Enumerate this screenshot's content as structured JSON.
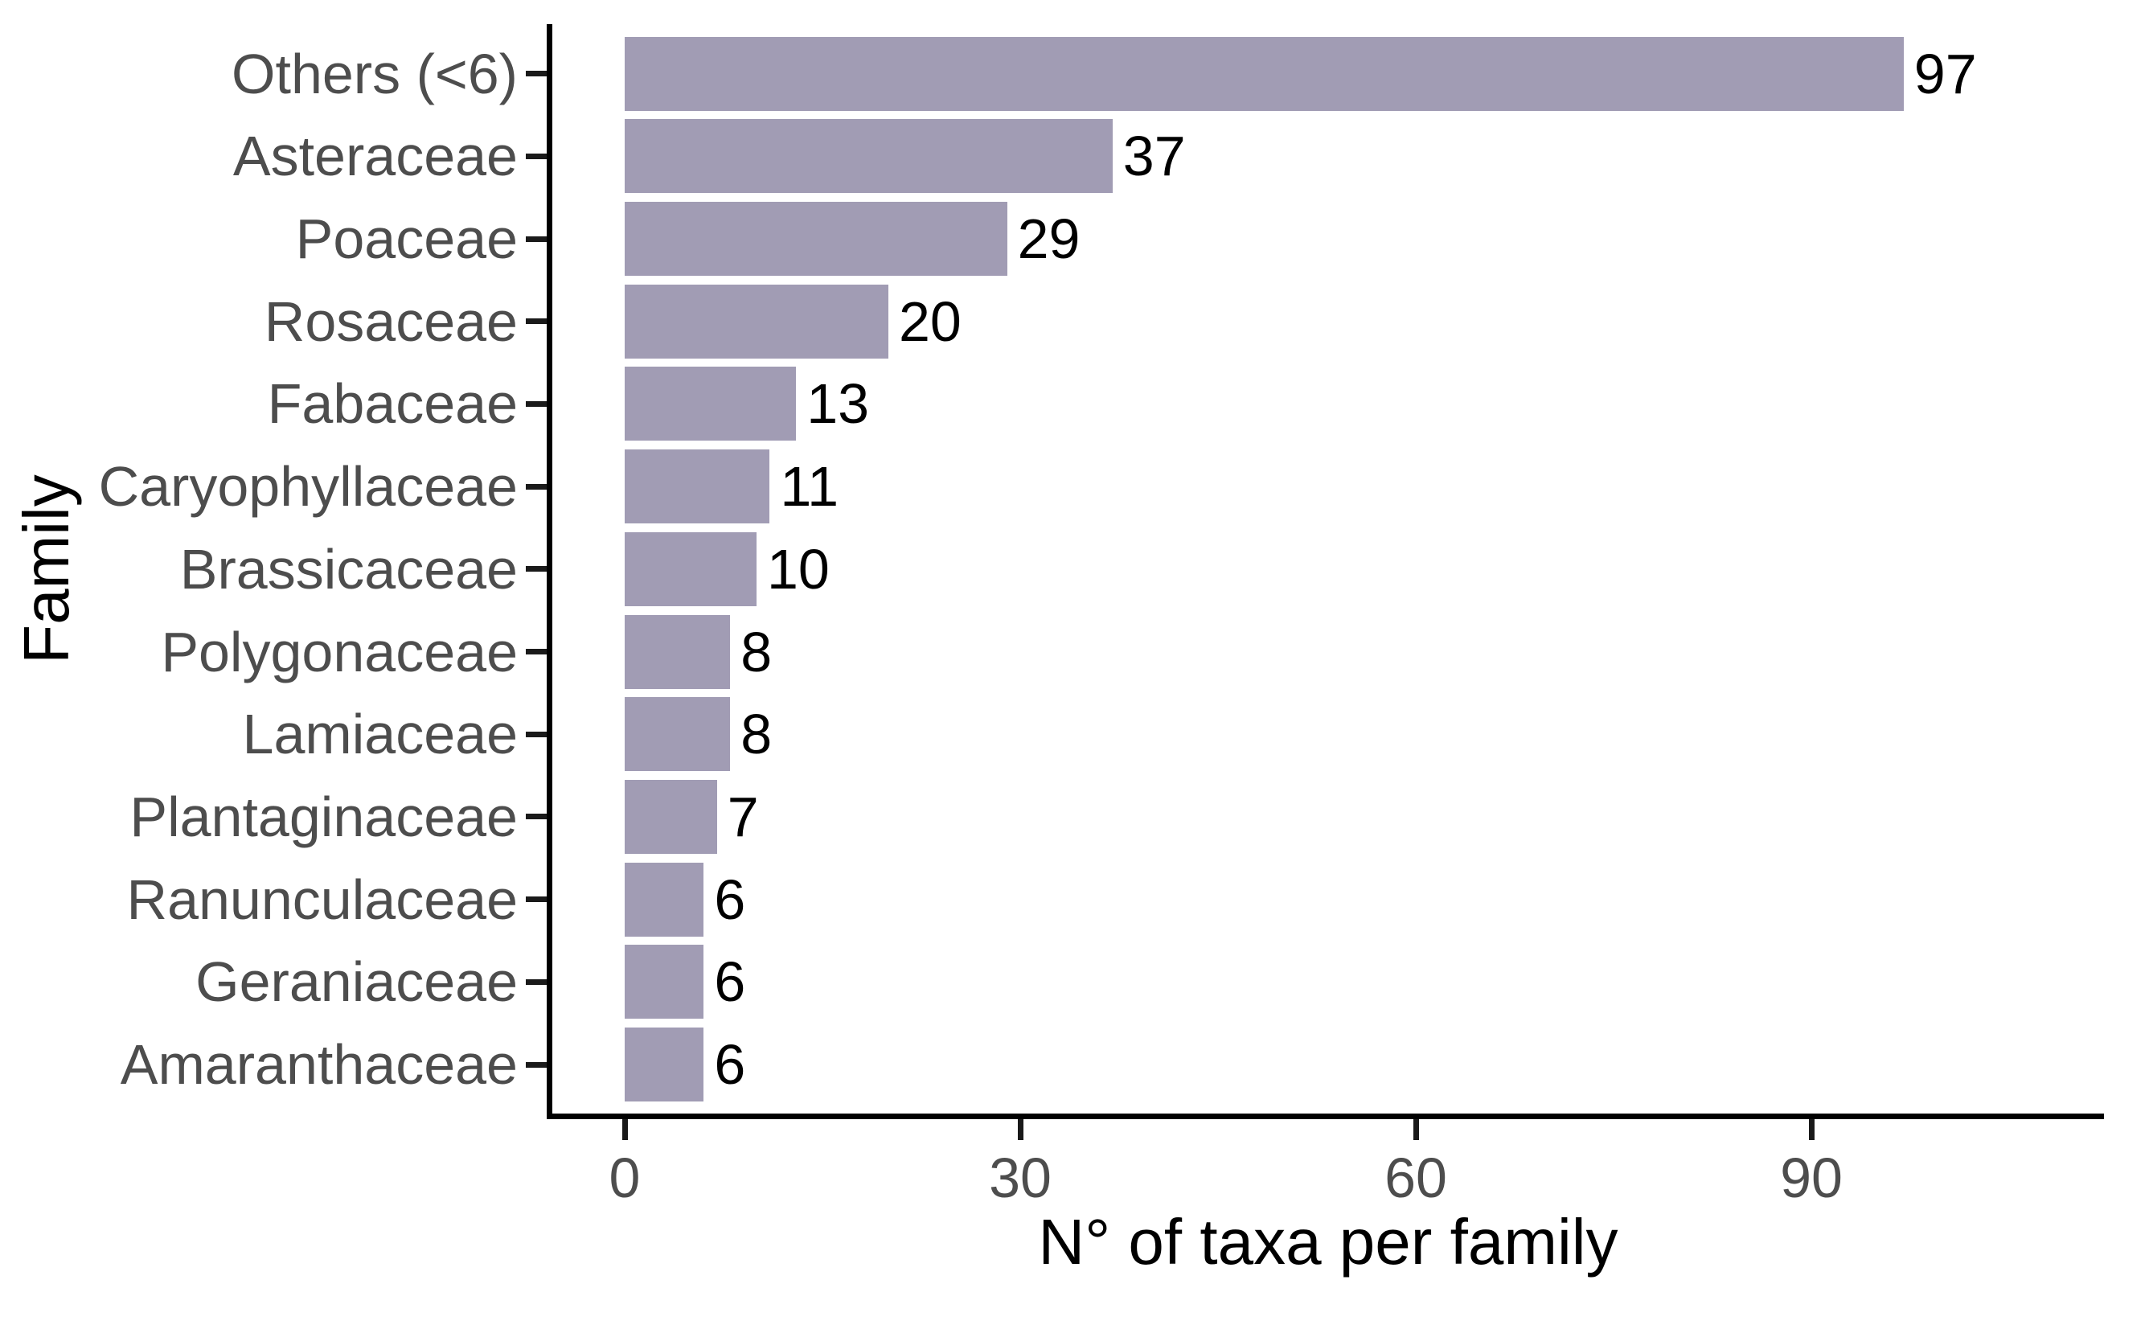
{
  "chart_data": {
    "type": "bar",
    "orientation": "horizontal",
    "title": "",
    "xlabel": "N° of taxa per family",
    "ylabel": "Family",
    "categories": [
      "Others (<6)",
      "Asteraceae",
      "Poaceae",
      "Rosaceae",
      "Fabaceae",
      "Caryophyllaceae",
      "Brassicaceae",
      "Polygonaceae",
      "Lamiaceae",
      "Plantaginaceae",
      "Ranunculaceae",
      "Geraniaceae",
      "Amaranthaceae"
    ],
    "values": [
      97,
      37,
      29,
      20,
      13,
      11,
      10,
      8,
      8,
      7,
      6,
      6,
      6
    ],
    "value_labels": [
      "97",
      "37",
      "29",
      "20",
      "13",
      "11",
      "10",
      "8",
      "8",
      "7",
      "6",
      "6",
      "6"
    ],
    "x_ticks": [
      0,
      30,
      60,
      90
    ],
    "x_tick_labels": [
      "0",
      "30",
      "60",
      "90"
    ],
    "xlim": [
      0,
      112
    ],
    "grid": false,
    "legend": false,
    "bar_color": "#a19cb4",
    "axis_text_color": "#4d4d4d",
    "axis_title_color": "#000000",
    "axis_line_color": "#000000"
  }
}
